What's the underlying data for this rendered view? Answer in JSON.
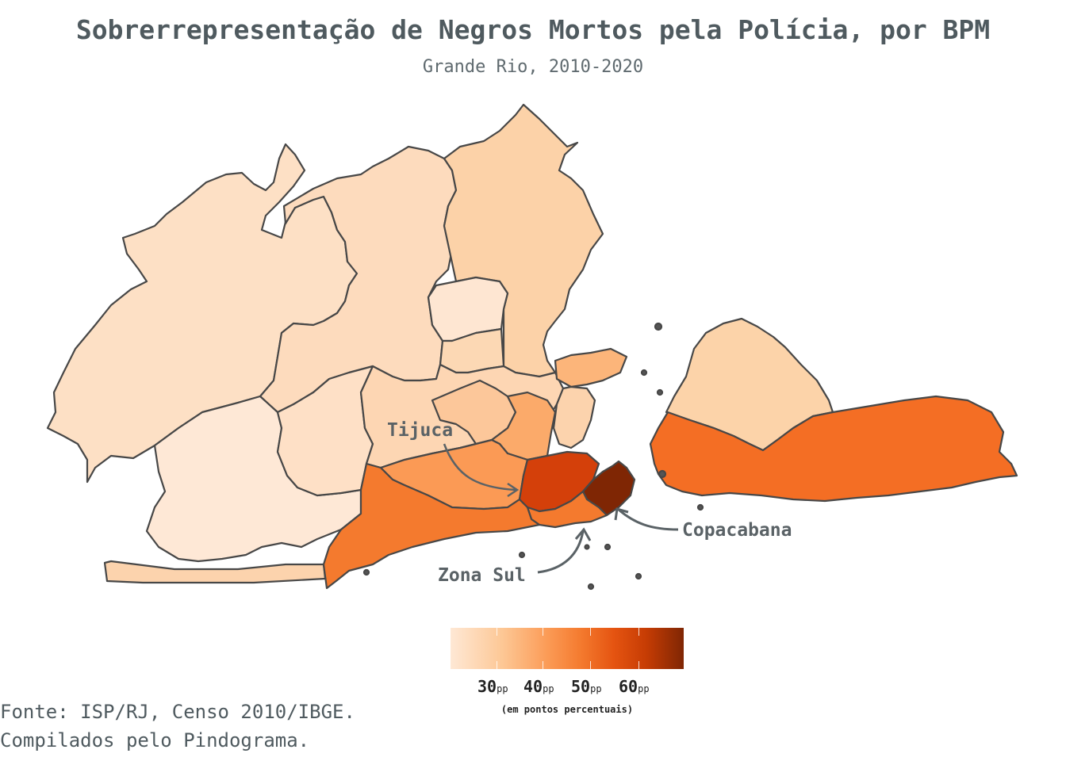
{
  "title": "Sobrerrepresentação de Negros Mortos pela Polícia, por BPM",
  "subtitle": "Grande Rio, 2010-2020",
  "callouts": {
    "tijuca": "Tijuca",
    "copacabana": "Copacabana",
    "zona_sul": "Zona Sul"
  },
  "legend": {
    "labels": [
      {
        "value": "30",
        "unit": "pp"
      },
      {
        "value": "40",
        "unit": "pp"
      },
      {
        "value": "50",
        "unit": "pp"
      },
      {
        "value": "60",
        "unit": "pp"
      }
    ],
    "note": "(em pontos percentuais)",
    "colors": [
      "#fee8d5",
      "#fdc896",
      "#fb9a55",
      "#f47a2e",
      "#e55411",
      "#c63c04",
      "#7f2604"
    ]
  },
  "source": {
    "line1": "Fonte: ISP/RJ, Censo 2010/IBGE.",
    "line2": "Compilados pelo Pindograma."
  },
  "colors": {
    "text": "#4f5a5f",
    "outline": "#474747"
  }
}
